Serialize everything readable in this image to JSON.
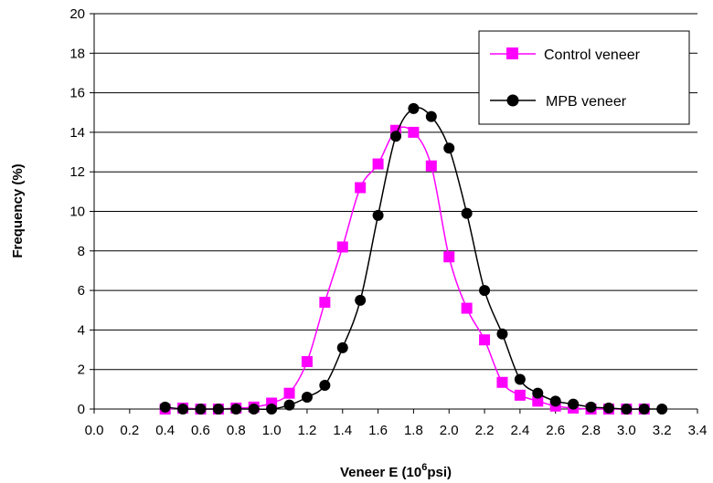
{
  "chart_data": {
    "type": "line",
    "title": "",
    "xlabel": "Veneer E (10^6psi)",
    "xlabel_parts": {
      "base": "Veneer E (10",
      "sup": "6",
      "tail": "psi)"
    },
    "ylabel": "Frequency (%)",
    "xlim": [
      0,
      3.4
    ],
    "ylim": [
      0,
      20
    ],
    "xticks": [
      "0.0",
      "0.2",
      "0.4",
      "0.6",
      "0.8",
      "1.0",
      "1.2",
      "1.4",
      "1.6",
      "1.8",
      "2.0",
      "2.2",
      "2.4",
      "2.6",
      "2.8",
      "3.0",
      "3.2",
      "3.4"
    ],
    "yticks": [
      "0",
      "2",
      "4",
      "6",
      "8",
      "10",
      "12",
      "14",
      "16",
      "18",
      "20"
    ],
    "grid": "horizontal",
    "legend_position": "top-right",
    "series": [
      {
        "name": "Control veneer",
        "color": "#ff00ff",
        "marker": "square",
        "x": [
          0.4,
          0.5,
          0.6,
          0.7,
          0.8,
          0.9,
          1.0,
          1.1,
          1.2,
          1.3,
          1.4,
          1.5,
          1.6,
          1.7,
          1.8,
          1.9,
          2.0,
          2.1,
          2.2,
          2.3,
          2.4,
          2.5,
          2.6,
          2.7,
          2.8,
          2.9,
          3.0,
          3.1
        ],
        "values": [
          0.0,
          0.05,
          0.0,
          0.0,
          0.05,
          0.1,
          0.3,
          0.8,
          2.4,
          5.4,
          8.2,
          11.2,
          12.4,
          14.1,
          14.0,
          12.3,
          7.7,
          5.1,
          3.5,
          1.35,
          0.7,
          0.4,
          0.15,
          0.05,
          0.0,
          0.0,
          0.0,
          0.0
        ]
      },
      {
        "name": "MPB veneer",
        "color": "#000000",
        "marker": "circle",
        "x": [
          0.4,
          0.5,
          0.6,
          0.7,
          0.8,
          0.9,
          1.0,
          1.1,
          1.2,
          1.3,
          1.4,
          1.5,
          1.6,
          1.7,
          1.8,
          1.9,
          2.0,
          2.1,
          2.2,
          2.3,
          2.4,
          2.5,
          2.6,
          2.7,
          2.8,
          2.9,
          3.0,
          3.1,
          3.2
        ],
        "values": [
          0.1,
          0.0,
          0.0,
          0.0,
          0.0,
          0.0,
          0.0,
          0.2,
          0.6,
          1.2,
          3.1,
          5.5,
          9.8,
          13.8,
          15.2,
          14.8,
          13.2,
          9.9,
          6.0,
          3.8,
          1.5,
          0.8,
          0.4,
          0.25,
          0.1,
          0.05,
          0.0,
          0.0,
          0.0
        ]
      }
    ]
  }
}
